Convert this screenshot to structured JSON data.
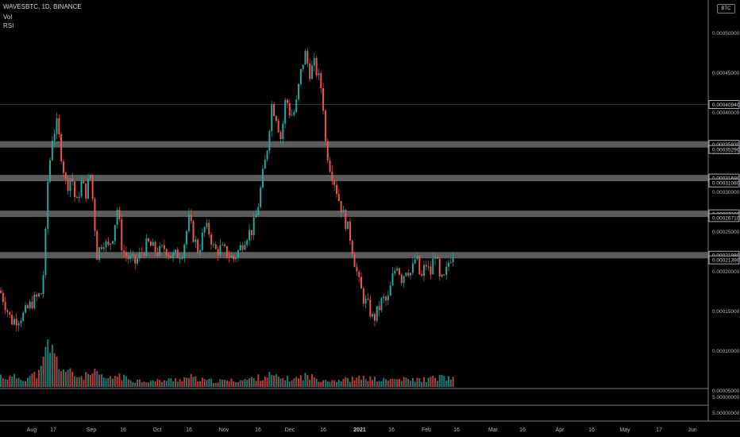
{
  "header": {
    "symbol_line": "WAVESBTC, 1D, BINANCE",
    "indicator_vol": "Vol",
    "indicator_rsi": "RSI"
  },
  "currency_badge": "BTC",
  "colors": {
    "up": "#26a69a",
    "down": "#ef5350",
    "band": "#6b6b6b",
    "axis_text": "#b2b5be",
    "label_bg": "#d1d4dc"
  },
  "chart_data": {
    "type": "candlestick",
    "title": "WAVESBTC, 1D, BINANCE",
    "y_axis_labels": [
      "0.00050000",
      "0.00045000",
      "0.00040000",
      "0.00035000",
      "0.00030000",
      "0.00025000",
      "0.00020000",
      "0.00015000",
      "0.00010000",
      "0.00005000"
    ],
    "x_axis_labels": [
      "Aug",
      "17",
      "Sep",
      "16",
      "Oct",
      "16",
      "Nov",
      "16",
      "Dec",
      "16",
      "2021",
      "16",
      "Feb",
      "16",
      "Mar",
      "16",
      "Apr",
      "16",
      "May",
      "17",
      "Jun"
    ],
    "horizontal_levels": [
      {
        "label": "0.00040940",
        "value": 0.0004094,
        "style": "line"
      },
      {
        "label": "0.00035930",
        "value": 0.0003593,
        "style": "band"
      },
      {
        "label": "0.00035290",
        "value": 0.0003529,
        "style": "label"
      },
      {
        "label": "0.00031690",
        "value": 0.0003169,
        "style": "band"
      },
      {
        "label": "0.00031080",
        "value": 0.0003108,
        "style": "label"
      },
      {
        "label": "0.00027190",
        "value": 0.0002719,
        "style": "band"
      },
      {
        "label": "0.00026710",
        "value": 0.0002671,
        "style": "label"
      },
      {
        "label": "0.00021980",
        "value": 0.0002198,
        "style": "band"
      },
      {
        "label": "0.00021390",
        "value": 0.0002139,
        "style": "label"
      }
    ],
    "rsi_pane_labels": [
      "5.00000000",
      "5.00000000"
    ],
    "price_path": [
      [
        0,
        0.000175
      ],
      [
        6,
        0.00016
      ],
      [
        14,
        0.000137
      ],
      [
        22,
        0.00014
      ],
      [
        30,
        0.000145
      ],
      [
        40,
        0.00016
      ],
      [
        52,
        0.000172
      ],
      [
        56,
        0.00021
      ],
      [
        60,
        0.00031
      ],
      [
        66,
        0.00037
      ],
      [
        72,
        0.000385
      ],
      [
        78,
        0.00034
      ],
      [
        84,
        0.000305
      ],
      [
        90,
        0.000322
      ],
      [
        96,
        0.00028
      ],
      [
        102,
        0.000312
      ],
      [
        108,
        0.000298
      ],
      [
        114,
        0.000322
      ],
      [
        118,
        0.000275
      ],
      [
        122,
        0.00022
      ],
      [
        130,
        0.00024
      ],
      [
        136,
        0.000228
      ],
      [
        142,
        0.000245
      ],
      [
        148,
        0.00028
      ],
      [
        154,
        0.000226
      ],
      [
        162,
        0.000216
      ],
      [
        170,
        0.00021
      ],
      [
        178,
        0.000222
      ],
      [
        186,
        0.000235
      ],
      [
        194,
        0.000227
      ],
      [
        200,
        0.000223
      ],
      [
        208,
        0.00023
      ],
      [
        216,
        0.000218
      ],
      [
        222,
        0.00022
      ],
      [
        230,
        0.000225
      ],
      [
        238,
        0.000265
      ],
      [
        244,
        0.000242
      ],
      [
        250,
        0.000225
      ],
      [
        258,
        0.000255
      ],
      [
        264,
        0.000248
      ],
      [
        270,
        0.000225
      ],
      [
        278,
        0.000228
      ],
      [
        286,
        0.000222
      ],
      [
        294,
        0.000215
      ],
      [
        302,
        0.000228
      ],
      [
        310,
        0.000245
      ],
      [
        318,
        0.000252
      ],
      [
        324,
        0.000275
      ],
      [
        330,
        0.000315
      ],
      [
        336,
        0.00035
      ],
      [
        342,
        0.00041
      ],
      [
        348,
        0.000395
      ],
      [
        354,
        0.000365
      ],
      [
        360,
        0.00042
      ],
      [
        366,
        0.000395
      ],
      [
        372,
        0.000402
      ],
      [
        378,
        0.000445
      ],
      [
        384,
        0.000475
      ],
      [
        390,
        0.00045
      ],
      [
        396,
        0.00046
      ],
      [
        402,
        0.00044
      ],
      [
        406,
        0.000425
      ],
      [
        410,
        0.00036
      ],
      [
        416,
        0.00033
      ],
      [
        422,
        0.00031
      ],
      [
        428,
        0.000285
      ],
      [
        434,
        0.000265
      ],
      [
        440,
        0.000248
      ],
      [
        446,
        0.000215
      ],
      [
        452,
        0.000185
      ],
      [
        458,
        0.000165
      ],
      [
        464,
        0.000155
      ],
      [
        470,
        0.000138
      ],
      [
        476,
        0.00015
      ],
      [
        482,
        0.000165
      ],
      [
        488,
        0.00016
      ],
      [
        494,
        0.00019
      ],
      [
        500,
        0.00021
      ],
      [
        506,
        0.00019
      ],
      [
        512,
        0.000205
      ],
      [
        518,
        0.000196
      ],
      [
        524,
        0.00022
      ],
      [
        530,
        0.000187
      ],
      [
        536,
        0.00021
      ],
      [
        542,
        0.000195
      ],
      [
        548,
        0.000226
      ],
      [
        554,
        0.000186
      ],
      [
        560,
        0.00019
      ],
      [
        566,
        0.000215
      ],
      [
        572,
        0.000226
      ]
    ],
    "volume_path": [
      [
        0,
        0.25
      ],
      [
        10,
        0.2
      ],
      [
        20,
        0.22
      ],
      [
        30,
        0.18
      ],
      [
        40,
        0.25
      ],
      [
        50,
        0.3
      ],
      [
        56,
        0.6
      ],
      [
        60,
        1.0
      ],
      [
        64,
        0.85
      ],
      [
        68,
        0.7
      ],
      [
        72,
        0.55
      ],
      [
        80,
        0.38
      ],
      [
        90,
        0.3
      ],
      [
        100,
        0.22
      ],
      [
        110,
        0.25
      ],
      [
        120,
        0.3
      ],
      [
        130,
        0.2
      ],
      [
        140,
        0.18
      ],
      [
        148,
        0.28
      ],
      [
        156,
        0.2
      ],
      [
        170,
        0.15
      ],
      [
        190,
        0.13
      ],
      [
        210,
        0.15
      ],
      [
        230,
        0.18
      ],
      [
        240,
        0.22
      ],
      [
        250,
        0.16
      ],
      [
        270,
        0.13
      ],
      [
        290,
        0.14
      ],
      [
        310,
        0.16
      ],
      [
        330,
        0.22
      ],
      [
        340,
        0.26
      ],
      [
        350,
        0.2
      ],
      [
        370,
        0.17
      ],
      [
        385,
        0.25
      ],
      [
        400,
        0.18
      ],
      [
        420,
        0.15
      ],
      [
        440,
        0.17
      ],
      [
        460,
        0.2
      ],
      [
        480,
        0.15
      ],
      [
        500,
        0.17
      ],
      [
        520,
        0.16
      ],
      [
        540,
        0.17
      ],
      [
        556,
        0.22
      ],
      [
        566,
        0.19
      ],
      [
        572,
        0.16
      ]
    ]
  }
}
